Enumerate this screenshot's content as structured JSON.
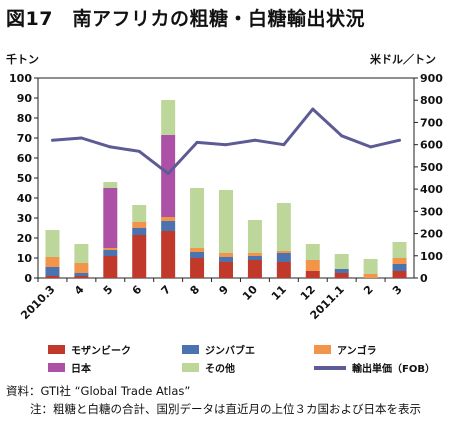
{
  "title": "図17　南アフリカの粗糖・白糖輸出状況",
  "left_unit": "千トン",
  "right_unit": "米ドル／トン",
  "source_label": "資料：",
  "source_text": "GTI社 “Global Trade Atlas”",
  "note_label": "注：",
  "note_text": "粗糖と白糖の合計、国別データは直近月の上位３カ国および日本を表示",
  "colors": {
    "mozambique": "#c0392b",
    "zimbabwe": "#4a73b0",
    "angola": "#f0954a",
    "japan": "#ad51a6",
    "other": "#bdd79b",
    "price": "#5d5b95"
  },
  "chart_data": {
    "type": "bar",
    "stacked": true,
    "categories": [
      "2010.3",
      "4",
      "5",
      "6",
      "7",
      "8",
      "9",
      "10",
      "11",
      "12",
      "2011.1",
      "2",
      "3"
    ],
    "ylabel_left": "千トン",
    "ylabel_right": "米ドル／トン",
    "ylim_left": [
      0,
      100
    ],
    "ylim_right": [
      0,
      900
    ],
    "yticks_left": [
      "0",
      "10",
      "20",
      "30",
      "40",
      "50",
      "60",
      "70",
      "80",
      "90",
      "100"
    ],
    "yticks_right": [
      "0",
      "100",
      "200",
      "300",
      "400",
      "500",
      "600",
      "700",
      "800",
      "900"
    ],
    "series": [
      {
        "name": "モザンビーク",
        "key": "mozambique",
        "values": [
          1,
          1,
          11,
          21.5,
          23.5,
          10,
          8,
          9,
          8,
          3.5,
          2.5,
          0,
          3.5
        ]
      },
      {
        "name": "ジンバブエ",
        "key": "zimbabwe",
        "values": [
          4.5,
          1.5,
          3,
          3.5,
          5,
          3,
          2.5,
          2,
          4.5,
          0,
          2,
          0,
          3.5
        ]
      },
      {
        "name": "アンゴラ",
        "key": "angola",
        "values": [
          5,
          5,
          1,
          3,
          2,
          2,
          2,
          1.5,
          1,
          5.5,
          0,
          2,
          3
        ]
      },
      {
        "name": "日本",
        "key": "japan",
        "values": [
          0,
          0,
          30,
          0,
          41,
          0,
          0,
          0,
          0,
          0,
          0,
          0,
          0
        ]
      },
      {
        "name": "その他",
        "key": "other",
        "values": [
          13.5,
          9.5,
          3,
          8.5,
          17.5,
          30,
          31.5,
          16.5,
          24,
          8,
          7.5,
          7.5,
          8
        ]
      }
    ],
    "line_series": {
      "name": "輸出単価（FOB）",
      "key": "price",
      "axis": "right",
      "values": [
        620,
        630,
        590,
        570,
        470,
        610,
        600,
        620,
        600,
        760,
        640,
        590,
        620
      ]
    },
    "legend_position": "bottom",
    "grid": false
  }
}
